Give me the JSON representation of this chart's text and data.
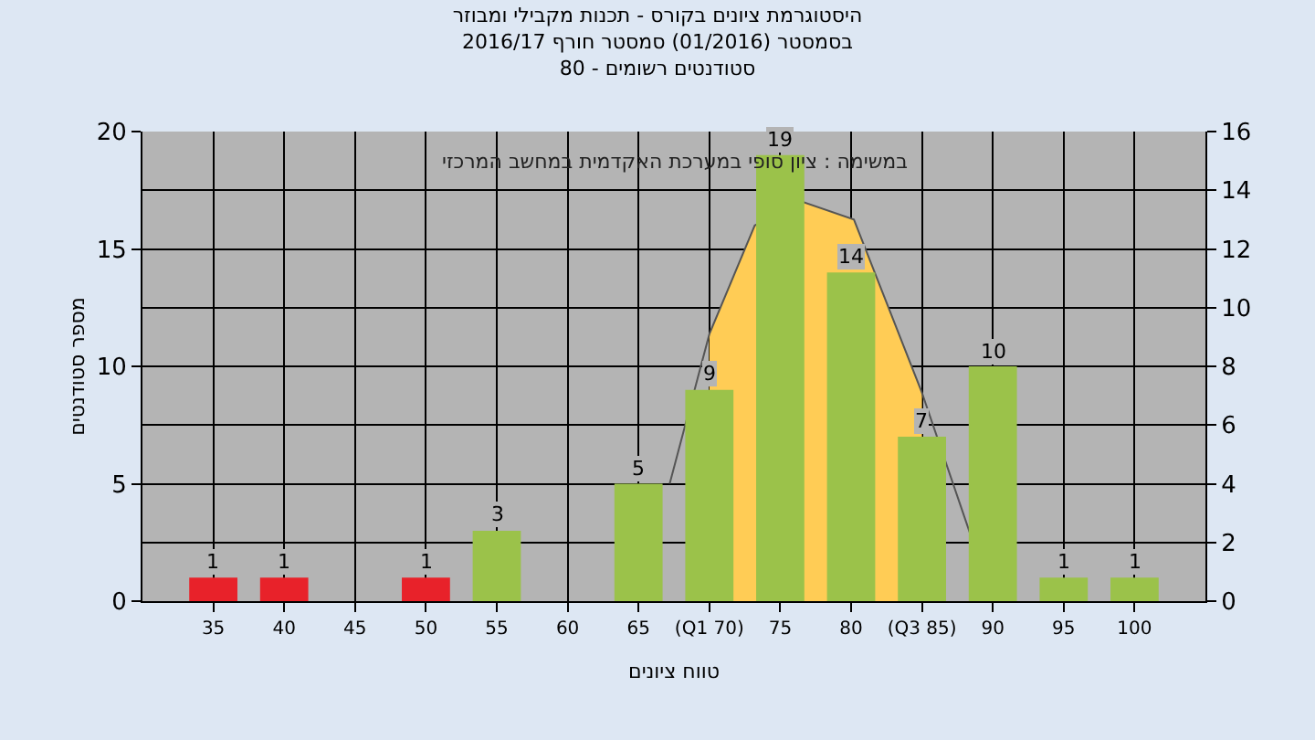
{
  "chart_data": {
    "type": "bar",
    "title": "היסטוגרמת ציונים בקורס - תכנות מקבילי ומבוזר",
    "subtitle": "בסמסטר (01/2016) סמסטר חורף 2016/17\nסטודנטים רשומים - 80",
    "xlabel": "טווח ציונים",
    "ylabel": "מספר סטודנטים",
    "annotations": [
      "במשימה : ציון סופי במערכת האקדמית במחשב המרכזי"
    ],
    "xlim": [
      30,
      105
    ],
    "xticks": [
      35,
      40,
      45,
      50,
      55,
      60,
      65,
      {
        "value": 70,
        "label": "(Q1 70)"
      },
      75,
      80,
      {
        "value": 85,
        "label": "(Q3 85)"
      },
      90,
      95,
      100
    ],
    "ylim": [
      0,
      20
    ],
    "yticks": [
      0,
      5,
      10,
      15,
      20
    ],
    "y2lim": [
      0,
      16
    ],
    "y2ticks": [
      0,
      2,
      4,
      6,
      8,
      10,
      12,
      14,
      16
    ],
    "grid": true,
    "series": [
      {
        "type": "area",
        "axis": "y2",
        "color": "#ffcc55",
        "x": [
          70,
          73.2,
          76.6,
          80.2,
          85
        ],
        "values": [
          9.1,
          12.8,
          13.6,
          13.0,
          7.1
        ]
      },
      {
        "type": "line",
        "axis": "y2",
        "color": "#555555",
        "x": [
          67.2,
          70,
          73.2,
          76.6,
          80.2,
          85,
          88.4
        ],
        "values": [
          4.0,
          9.1,
          12.8,
          13.6,
          13.0,
          7.1,
          2.3
        ]
      },
      {
        "x": [
          35,
          40,
          50,
          55,
          65,
          70,
          75,
          80,
          85,
          90,
          95,
          100
        ],
        "values": [
          1,
          1,
          1,
          3,
          5,
          9,
          19,
          14,
          7,
          10,
          1,
          1
        ],
        "value_labels": [
          "1",
          "1",
          "1",
          "3",
          "5",
          "9",
          "19",
          "14",
          "7",
          "10",
          "1",
          "1"
        ],
        "colors": [
          "#e8222a",
          "#e8222a",
          "#e8222a",
          "#9bc24a",
          "#9bc24a",
          "#9bc24a",
          "#9bc24a",
          "#9bc24a",
          "#9bc24a",
          "#9bc24a",
          "#9bc24a",
          "#9bc24a"
        ]
      }
    ]
  }
}
